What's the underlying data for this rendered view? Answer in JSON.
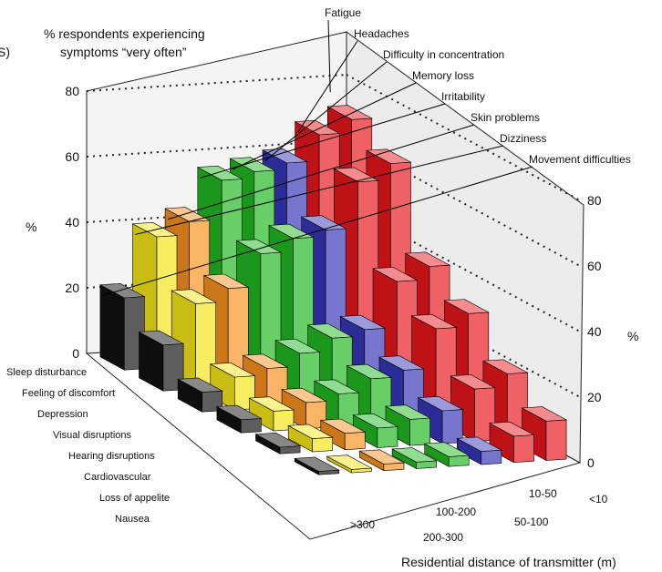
{
  "chart_data": {
    "type": "bar",
    "title_lines": [
      "% respondents experiencing",
      "symptoms “very often”"
    ],
    "edge_fragment": "S)",
    "ylabel": "%",
    "ylim": [
      0,
      80
    ],
    "yticks": [
      "0",
      "20",
      "40",
      "60",
      "80"
    ],
    "xlabel": "Residential distance of transmitter (m)",
    "distances": [
      "<10",
      "10-50",
      "50-100",
      "100-200",
      "200-300",
      ">300"
    ],
    "symptoms": [
      "Fatigue",
      "Headaches",
      "Difficulty in concentration",
      "Memory loss",
      "Irritability",
      "Skin problems",
      "Dizziness",
      "Movement difficulties"
    ],
    "row_labels": [
      "Sleep disturbance",
      "Feeling of discomfort",
      "Depression",
      "Visual disruptions",
      "Hearing disruptions",
      "Cardiovascular",
      "Loss of appelite",
      "Nausea"
    ],
    "colors": {
      "sleep": "#e8161c",
      "discomfort": "#e8161c",
      "depression": "#3636b8",
      "visual": "#21b821",
      "hearing": "#21b821",
      "cardio": "#f7901e",
      "loss": "#f5e516",
      "nausea": "#111111"
    },
    "series": [
      {
        "name": "Fatigue",
        "color_key": "sleep",
        "values": [
          72,
          65,
          40,
          32,
          20,
          12
        ]
      },
      {
        "name": "Headaches",
        "color_key": "discomfort",
        "values": [
          68,
          60,
          36,
          28,
          16,
          8
        ]
      },
      {
        "name": "Difficulty in concentration",
        "color_key": "depression",
        "values": [
          60,
          46,
          22,
          16,
          10,
          4
        ]
      },
      {
        "name": "Memory loss",
        "color_key": "visual",
        "values": [
          58,
          44,
          20,
          14,
          8,
          3
        ]
      },
      {
        "name": "Irritability",
        "color_key": "hearing",
        "values": [
          56,
          40,
          16,
          10,
          6,
          2
        ]
      },
      {
        "name": "Skin problems",
        "color_key": "cardio",
        "values": [
          44,
          30,
          12,
          8,
          5,
          2
        ]
      },
      {
        "name": "Dizziness",
        "color_key": "loss",
        "values": [
          40,
          26,
          10,
          6,
          4,
          1
        ]
      },
      {
        "name": "Movement difficulties",
        "color_key": "nausea",
        "values": [
          22,
          14,
          6,
          4,
          2,
          1
        ]
      }
    ]
  }
}
